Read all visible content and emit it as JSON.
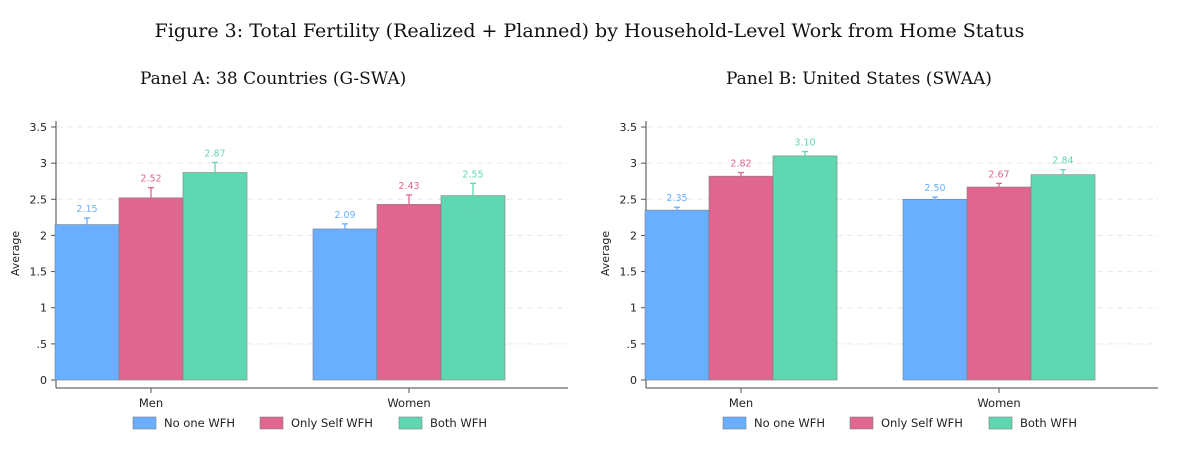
{
  "figure_title": "Figure 3: Total Fertility (Realized + Planned) by Household-Level Work from Home Status",
  "colors": {
    "no_one": "#6aaeff",
    "only_self": "#e0668f",
    "both": "#5fd7b0"
  },
  "chart_data": [
    {
      "type": "bar",
      "title": "Panel A: 38 Countries (G-SWA)",
      "ylabel": "Average",
      "xlabel": "",
      "categories": [
        "Men",
        "Women"
      ],
      "ylim": [
        0,
        3.5
      ],
      "yticks": [
        "0",
        ".5",
        "1",
        "1.5",
        "2",
        "2.5",
        "3",
        "3.5"
      ],
      "ytick_values": [
        0,
        0.5,
        1,
        1.5,
        2,
        2.5,
        3,
        3.5
      ],
      "grid": true,
      "legend_position": "bottom",
      "series": [
        {
          "name": "No one WFH",
          "values": [
            2.15,
            2.09
          ],
          "labels": [
            "2.15",
            "2.09"
          ],
          "ci": [
            [
              2.06,
              2.24
            ],
            [
              2.02,
              2.16
            ]
          ]
        },
        {
          "name": "Only Self WFH",
          "values": [
            2.52,
            2.43
          ],
          "labels": [
            "2.52",
            "2.43"
          ],
          "ci": [
            [
              2.38,
              2.66
            ],
            [
              2.3,
              2.56
            ]
          ]
        },
        {
          "name": "Both WFH",
          "values": [
            2.87,
            2.55
          ],
          "labels": [
            "2.87",
            "2.55"
          ],
          "ci": [
            [
              2.73,
              3.01
            ],
            [
              2.38,
              2.72
            ]
          ]
        }
      ]
    },
    {
      "type": "bar",
      "title": "Panel B: United States (SWAA)",
      "ylabel": "Average",
      "xlabel": "",
      "categories": [
        "Men",
        "Women"
      ],
      "ylim": [
        0,
        3.5
      ],
      "yticks": [
        "0",
        ".5",
        "1",
        "1.5",
        "2",
        "2.5",
        "3",
        "3.5"
      ],
      "ytick_values": [
        0,
        0.5,
        1,
        1.5,
        2,
        2.5,
        3,
        3.5
      ],
      "grid": true,
      "legend_position": "bottom",
      "series": [
        {
          "name": "No one WFH",
          "values": [
            2.35,
            2.5
          ],
          "labels": [
            "2.35",
            "2.50"
          ],
          "ci": [
            [
              2.31,
              2.39
            ],
            [
              2.47,
              2.53
            ]
          ]
        },
        {
          "name": "Only Self WFH",
          "values": [
            2.82,
            2.67
          ],
          "labels": [
            "2.82",
            "2.67"
          ],
          "ci": [
            [
              2.77,
              2.87
            ],
            [
              2.62,
              2.72
            ]
          ]
        },
        {
          "name": "Both WFH",
          "values": [
            3.1,
            2.84
          ],
          "labels": [
            "3.10",
            "2.84"
          ],
          "ci": [
            [
              3.04,
              3.16
            ],
            [
              2.77,
              2.91
            ]
          ]
        }
      ]
    }
  ]
}
